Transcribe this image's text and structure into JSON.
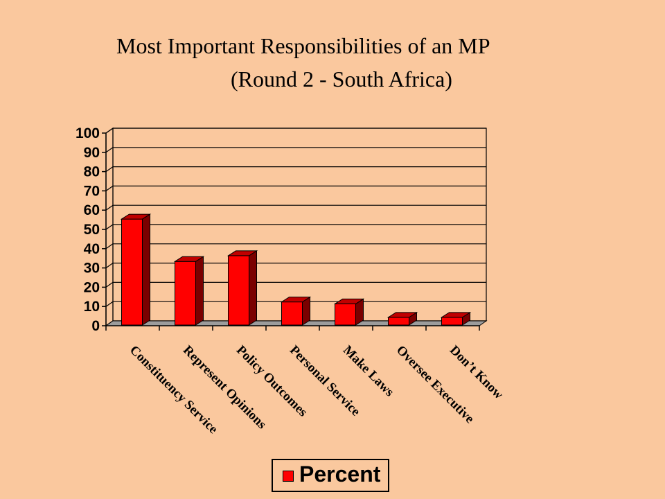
{
  "slide": {
    "title_line1": "Most Important Responsibilities of an MP",
    "title_line2": "(Round 2 - South Africa)",
    "background_color": "#FAC89E"
  },
  "chart_data": {
    "type": "bar",
    "style": "3d",
    "categories": [
      "Constituency Service",
      "Represent Opinions",
      "Policy Outcomes",
      "Personal Service",
      "Make Laws",
      "Oversee Executive",
      "Don’t Know"
    ],
    "series": [
      {
        "name": "Percent",
        "values": [
          55,
          33,
          36,
          12,
          11,
          4,
          4
        ],
        "color": "#FF0000"
      }
    ],
    "ylim": [
      0,
      100
    ],
    "y_ticks": [
      "0",
      "10",
      "20",
      "30",
      "40",
      "50",
      "60",
      "70",
      "80",
      "90",
      "100"
    ],
    "grid": true,
    "legend_position": "bottom",
    "title": "",
    "xlabel": "",
    "ylabel": ""
  },
  "legend": {
    "label": "Percent"
  }
}
